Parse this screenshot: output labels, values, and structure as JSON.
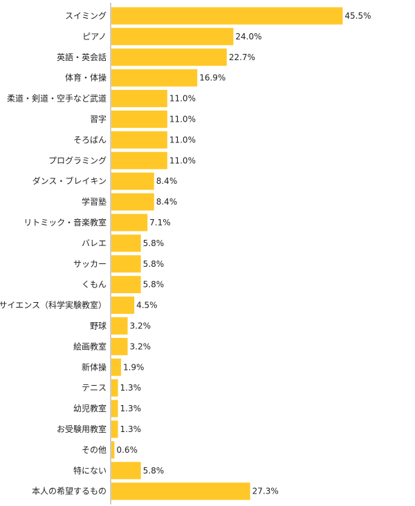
{
  "chart_data": {
    "type": "bar",
    "orientation": "horizontal",
    "categories": [
      "スイミング",
      "ピアノ",
      "英語・英会話",
      "体育・体操",
      "柔道・剣道・空手など武道",
      "習字",
      "そろばん",
      "プログラミング",
      "ダンス・ブレイキン",
      "学習塾",
      "リトミック・音楽教室",
      "バレエ",
      "サッカー",
      "くもん",
      "サイエンス（科学実験教室）",
      "野球",
      "絵画教室",
      "新体操",
      "テニス",
      "幼児教室",
      "お受験用教室",
      "その他",
      "特にない",
      "本人の希望するもの"
    ],
    "values": [
      45.5,
      24.0,
      22.7,
      16.9,
      11.0,
      11.0,
      11.0,
      11.0,
      8.4,
      8.4,
      7.1,
      5.8,
      5.8,
      5.8,
      4.5,
      3.2,
      3.2,
      1.9,
      1.3,
      1.3,
      1.3,
      0.6,
      5.8,
      27.3
    ],
    "value_labels": [
      "45.5%",
      "24.0%",
      "22.7%",
      "16.9%",
      "11.0%",
      "11.0%",
      "11.0%",
      "11.0%",
      "8.4%",
      "8.4%",
      "7.1%",
      "5.8%",
      "5.8%",
      "5.8%",
      "4.5%",
      "3.2%",
      "3.2%",
      "1.9%",
      "1.3%",
      "1.3%",
      "1.3%",
      "0.6%",
      "5.8%",
      "27.3%"
    ],
    "xlim": [
      0,
      100
    ],
    "grid": false,
    "legend": "none",
    "colors": {
      "bar": "#FFC828",
      "axis": "#999999"
    }
  }
}
